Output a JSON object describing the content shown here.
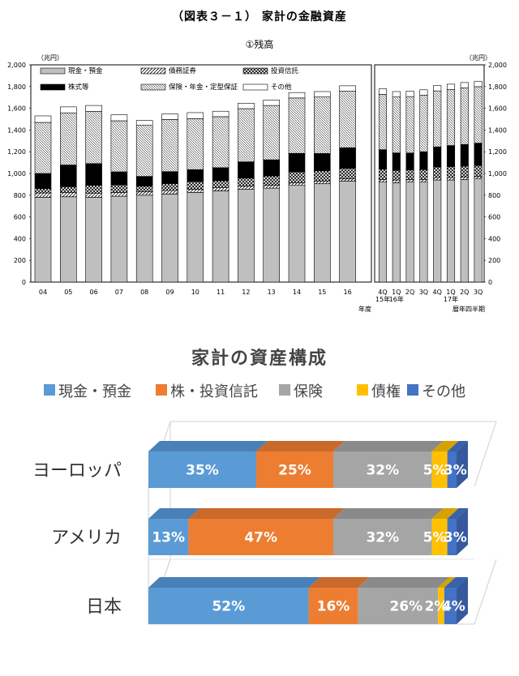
{
  "page_title": "（図表３－１） 家計の金融資産",
  "subtitle": "①残高",
  "colors": {
    "cash": "#bfbfbf",
    "bonds": "hatch",
    "trust": "crosshatch",
    "stock": "#000000",
    "insurance": "diagonal",
    "other": "#ffffff",
    "c_cash": "#5b9bd5",
    "c_stock": "#ed7d31",
    "c_ins": "#a5a5a5",
    "c_bond": "#ffc000",
    "c_other": "#4472c4"
  },
  "chart_data": [
    {
      "type": "bar",
      "stacked": true,
      "unit_label": "（兆円）",
      "ylim": [
        0,
        2000
      ],
      "yticks": [
        "0",
        "200",
        "400",
        "600",
        "800",
        "1,000",
        "1,200",
        "1,400",
        "1,600",
        "1,800",
        "2,000"
      ],
      "legend": [
        "現金・預金",
        "債務証券",
        "投資信託",
        "株式等",
        "保険・年金・定型保証",
        "その他"
      ],
      "annual": {
        "xlabel": "年度",
        "categories": [
          "04",
          "05",
          "06",
          "07",
          "08",
          "09",
          "10",
          "11",
          "12",
          "13",
          "14",
          "15",
          "16"
        ],
        "series": [
          {
            "name": "現金・預金",
            "values": [
              780,
              785,
              780,
              790,
              800,
              810,
              825,
              840,
              855,
              865,
              890,
              905,
              930
            ]
          },
          {
            "name": "債務証券",
            "values": [
              40,
              38,
              36,
              35,
              33,
              32,
              30,
              28,
              27,
              26,
              25,
              24,
              22
            ]
          },
          {
            "name": "投資信託",
            "values": [
              40,
              55,
              75,
              70,
              50,
              65,
              70,
              65,
              75,
              85,
              100,
              95,
              95
            ]
          },
          {
            "name": "株式等",
            "values": [
              140,
              200,
              200,
              120,
              90,
              110,
              110,
              120,
              150,
              150,
              170,
              160,
              190
            ]
          },
          {
            "name": "保険・年金・定型保証",
            "values": [
              470,
              480,
              480,
              470,
              470,
              480,
              470,
              470,
              490,
              500,
              510,
              520,
              520
            ]
          },
          {
            "name": "その他",
            "values": [
              60,
              55,
              55,
              55,
              45,
              50,
              55,
              50,
              50,
              50,
              50,
              50,
              50
            ]
          }
        ]
      },
      "quarterly": {
        "xlabel": "暦年四半期",
        "categories": [
          "4Q",
          "1Q",
          "2Q",
          "3Q",
          "4Q",
          "1Q",
          "2Q",
          "3Q"
        ],
        "year_labels": [
          "15年",
          "16年",
          "",
          "",
          "",
          "17年",
          "",
          ""
        ],
        "series": [
          {
            "name": "現金・預金",
            "values": [
              920,
              915,
              920,
              920,
              940,
              940,
              945,
              950
            ]
          },
          {
            "name": "債務証券",
            "values": [
              24,
              24,
              23,
              23,
              22,
              22,
              22,
              21
            ]
          },
          {
            "name": "投資信託",
            "values": [
              95,
              90,
              90,
              92,
              98,
              100,
              100,
              103
            ]
          },
          {
            "name": "株式等",
            "values": [
              180,
              160,
              155,
              165,
              185,
              195,
              200,
              205
            ]
          },
          {
            "name": "保険・年金・定型保証",
            "values": [
              510,
              515,
              520,
              520,
              515,
              515,
              520,
              520
            ]
          },
          {
            "name": "その他",
            "values": [
              50,
              50,
              50,
              50,
              50,
              50,
              50,
              50
            ]
          }
        ]
      }
    },
    {
      "type": "bar",
      "orientation": "horizontal",
      "stacked_percent": true,
      "title": "家計の資産構成",
      "legend": [
        "現金・預金",
        "株・投資信託",
        "保険",
        "債権",
        "その他"
      ],
      "categories": [
        "ヨーロッパ",
        "アメリカ",
        "日本"
      ],
      "series": [
        {
          "name": "現金・預金",
          "values": [
            35,
            13,
            52
          ],
          "labels": [
            "35%",
            "13%",
            "52%"
          ]
        },
        {
          "name": "株・投資信託",
          "values": [
            25,
            47,
            16
          ],
          "labels": [
            "25%",
            "47%",
            "16%"
          ]
        },
        {
          "name": "保険",
          "values": [
            32,
            32,
            26
          ],
          "labels": [
            "32%",
            "32%",
            "26%"
          ]
        },
        {
          "name": "債権",
          "values": [
            5,
            5,
            2
          ],
          "labels": [
            "5%",
            "5%",
            "2%"
          ]
        },
        {
          "name": "その他",
          "values": [
            3,
            3,
            4
          ],
          "labels": [
            "3%",
            "3%",
            "4%"
          ]
        }
      ]
    }
  ]
}
